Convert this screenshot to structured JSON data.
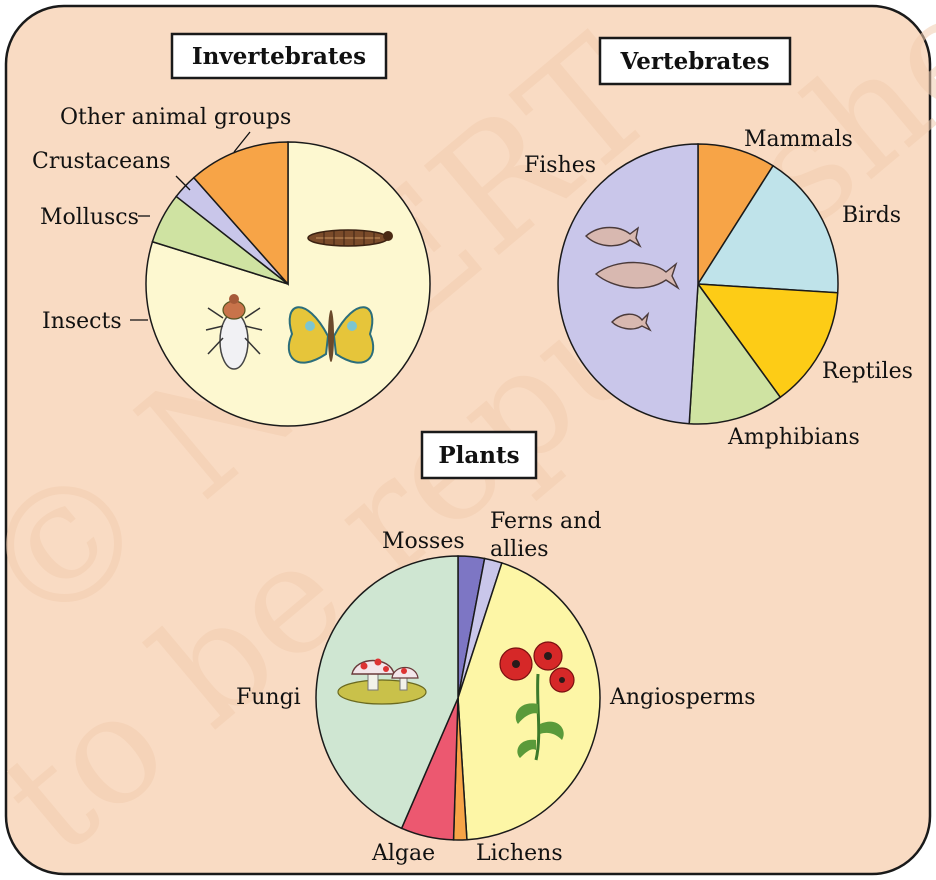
{
  "colors": {
    "panel_bg": "#f9dbc3",
    "panel_border": "#1a1a1a"
  },
  "watermark": {
    "line1": "© NCERT",
    "line2": "to be republished"
  },
  "chart_data": [
    {
      "type": "pie",
      "title": "Invertebrates",
      "slices": [
        {
          "label": "Insects",
          "value": 83,
          "color": "#fdf8d0"
        },
        {
          "label": "Molluscs",
          "value": 6,
          "color": "#cfe3a2"
        },
        {
          "label": "Crustaceans",
          "value": 3,
          "color": "#c9c6ea"
        },
        {
          "label": "Other animal groups",
          "value": 12,
          "color": "#f7a447"
        }
      ],
      "direction": "clockwise from top, Insects listed first but drawn after others",
      "icons": [
        "caterpillar-icon",
        "fly-icon",
        "butterfly-icon"
      ]
    },
    {
      "type": "pie",
      "title": "Vertebrates",
      "slices": [
        {
          "label": "Mammals",
          "value": 9,
          "color": "#f7a447"
        },
        {
          "label": "Birds",
          "value": 17,
          "color": "#bfe3ea"
        },
        {
          "label": "Reptiles",
          "value": 14,
          "color": "#fdcc16"
        },
        {
          "label": "Amphibians",
          "value": 11,
          "color": "#cfe3a2"
        },
        {
          "label": "Fishes",
          "value": 49,
          "color": "#c9c6ea"
        }
      ],
      "icons": [
        "fish-icon"
      ]
    },
    {
      "type": "pie",
      "title": "Plants",
      "slices": [
        {
          "label": "Mosses",
          "value": 3,
          "color": "#7d76c4"
        },
        {
          "label": "Ferns and allies",
          "value": 2,
          "color": "#c9c6ea"
        },
        {
          "label": "Angiosperms",
          "value": 44,
          "color": "#fdf6a6"
        },
        {
          "label": "Lichens",
          "value": 1.5,
          "color": "#f7a447"
        },
        {
          "label": "Algae",
          "value": 6,
          "color": "#ec5870"
        },
        {
          "label": "Fungi",
          "value": 43.5,
          "color": "#cfe6d2"
        }
      ],
      "icons": [
        "mushroom-icon",
        "flower-icon"
      ]
    }
  ]
}
